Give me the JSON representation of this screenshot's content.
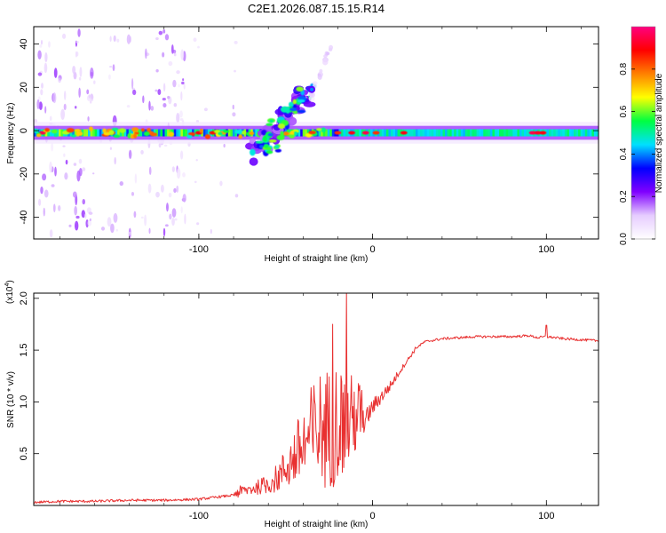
{
  "chart_data": [
    {
      "type": "heatmap",
      "title": "C2E1.2026.087.15.15.R14",
      "xlabel": "Height of straight line (km)",
      "ylabel": "Frequency (Hz)",
      "xlim": [
        -195,
        130
      ],
      "ylim": [
        -50,
        48
      ],
      "xticks": [
        -100,
        0,
        100
      ],
      "xtick_labels": [
        "-100",
        "0",
        "100"
      ],
      "yticks": [
        -40,
        -20,
        0,
        20,
        40
      ],
      "ytick_labels": [
        "-40",
        "-20",
        "0",
        "20",
        "40"
      ],
      "main_band": {
        "frequency_hz": -1,
        "approx_width_hz": 3
      },
      "colorbar": {
        "label": "Normalized spectral amplitude",
        "range": [
          0,
          1
        ],
        "ticks": [
          0.0,
          0.2,
          0.4,
          0.6,
          0.8
        ],
        "tick_labels": [
          "0.0",
          "0.2",
          "0.4",
          "0.6",
          "0.8"
        ],
        "colors": [
          "#ffffff",
          "#e6ccff",
          "#8000ff",
          "#0000ff",
          "#00e0ff",
          "#00ff40",
          "#ffff00",
          "#ff8000",
          "#ff0000",
          "#ff0080"
        ]
      }
    },
    {
      "type": "line",
      "xlabel": "Height of straight line (km)",
      "ylabel": "SNR (10 * v/v)",
      "y_multiplier": "(x10",
      "y_multiplier_exp": "4",
      "y_multiplier_close": ")",
      "xlim": [
        -195,
        130
      ],
      "ylim": [
        0,
        2.05
      ],
      "xticks": [
        -100,
        0,
        100
      ],
      "xtick_labels": [
        "-100",
        "0",
        "100"
      ],
      "yticks": [
        0.5,
        1.0,
        1.5,
        2.0
      ],
      "ytick_labels": [
        "0.5",
        "1.0",
        "1.5",
        "2.0"
      ],
      "color": "#e83030",
      "series": [
        {
          "name": "SNR",
          "x": [
            -195,
            -180,
            -160,
            -140,
            -120,
            -100,
            -90,
            -80,
            -70,
            -60,
            -55,
            -50,
            -45,
            -40,
            -35,
            -30,
            -25,
            -20,
            -15,
            -10,
            -5,
            0,
            5,
            10,
            15,
            20,
            25,
            30,
            40,
            50,
            60,
            70,
            80,
            90,
            95,
            100,
            110,
            120,
            130
          ],
          "y": [
            0.03,
            0.04,
            0.04,
            0.05,
            0.05,
            0.06,
            0.08,
            0.1,
            0.14,
            0.18,
            0.22,
            0.3,
            0.38,
            0.45,
            0.52,
            0.58,
            0.55,
            0.65,
            0.62,
            0.75,
            0.8,
            0.95,
            1.05,
            1.15,
            1.28,
            1.4,
            1.52,
            1.58,
            1.61,
            1.62,
            1.63,
            1.63,
            1.63,
            1.64,
            1.62,
            1.63,
            1.61,
            1.6,
            1.59
          ]
        }
      ],
      "notable_peaks": [
        {
          "x": -23,
          "y": 1.75
        },
        {
          "x": -15,
          "y": 2.05
        },
        {
          "x": 100,
          "y": 1.74
        }
      ]
    }
  ]
}
